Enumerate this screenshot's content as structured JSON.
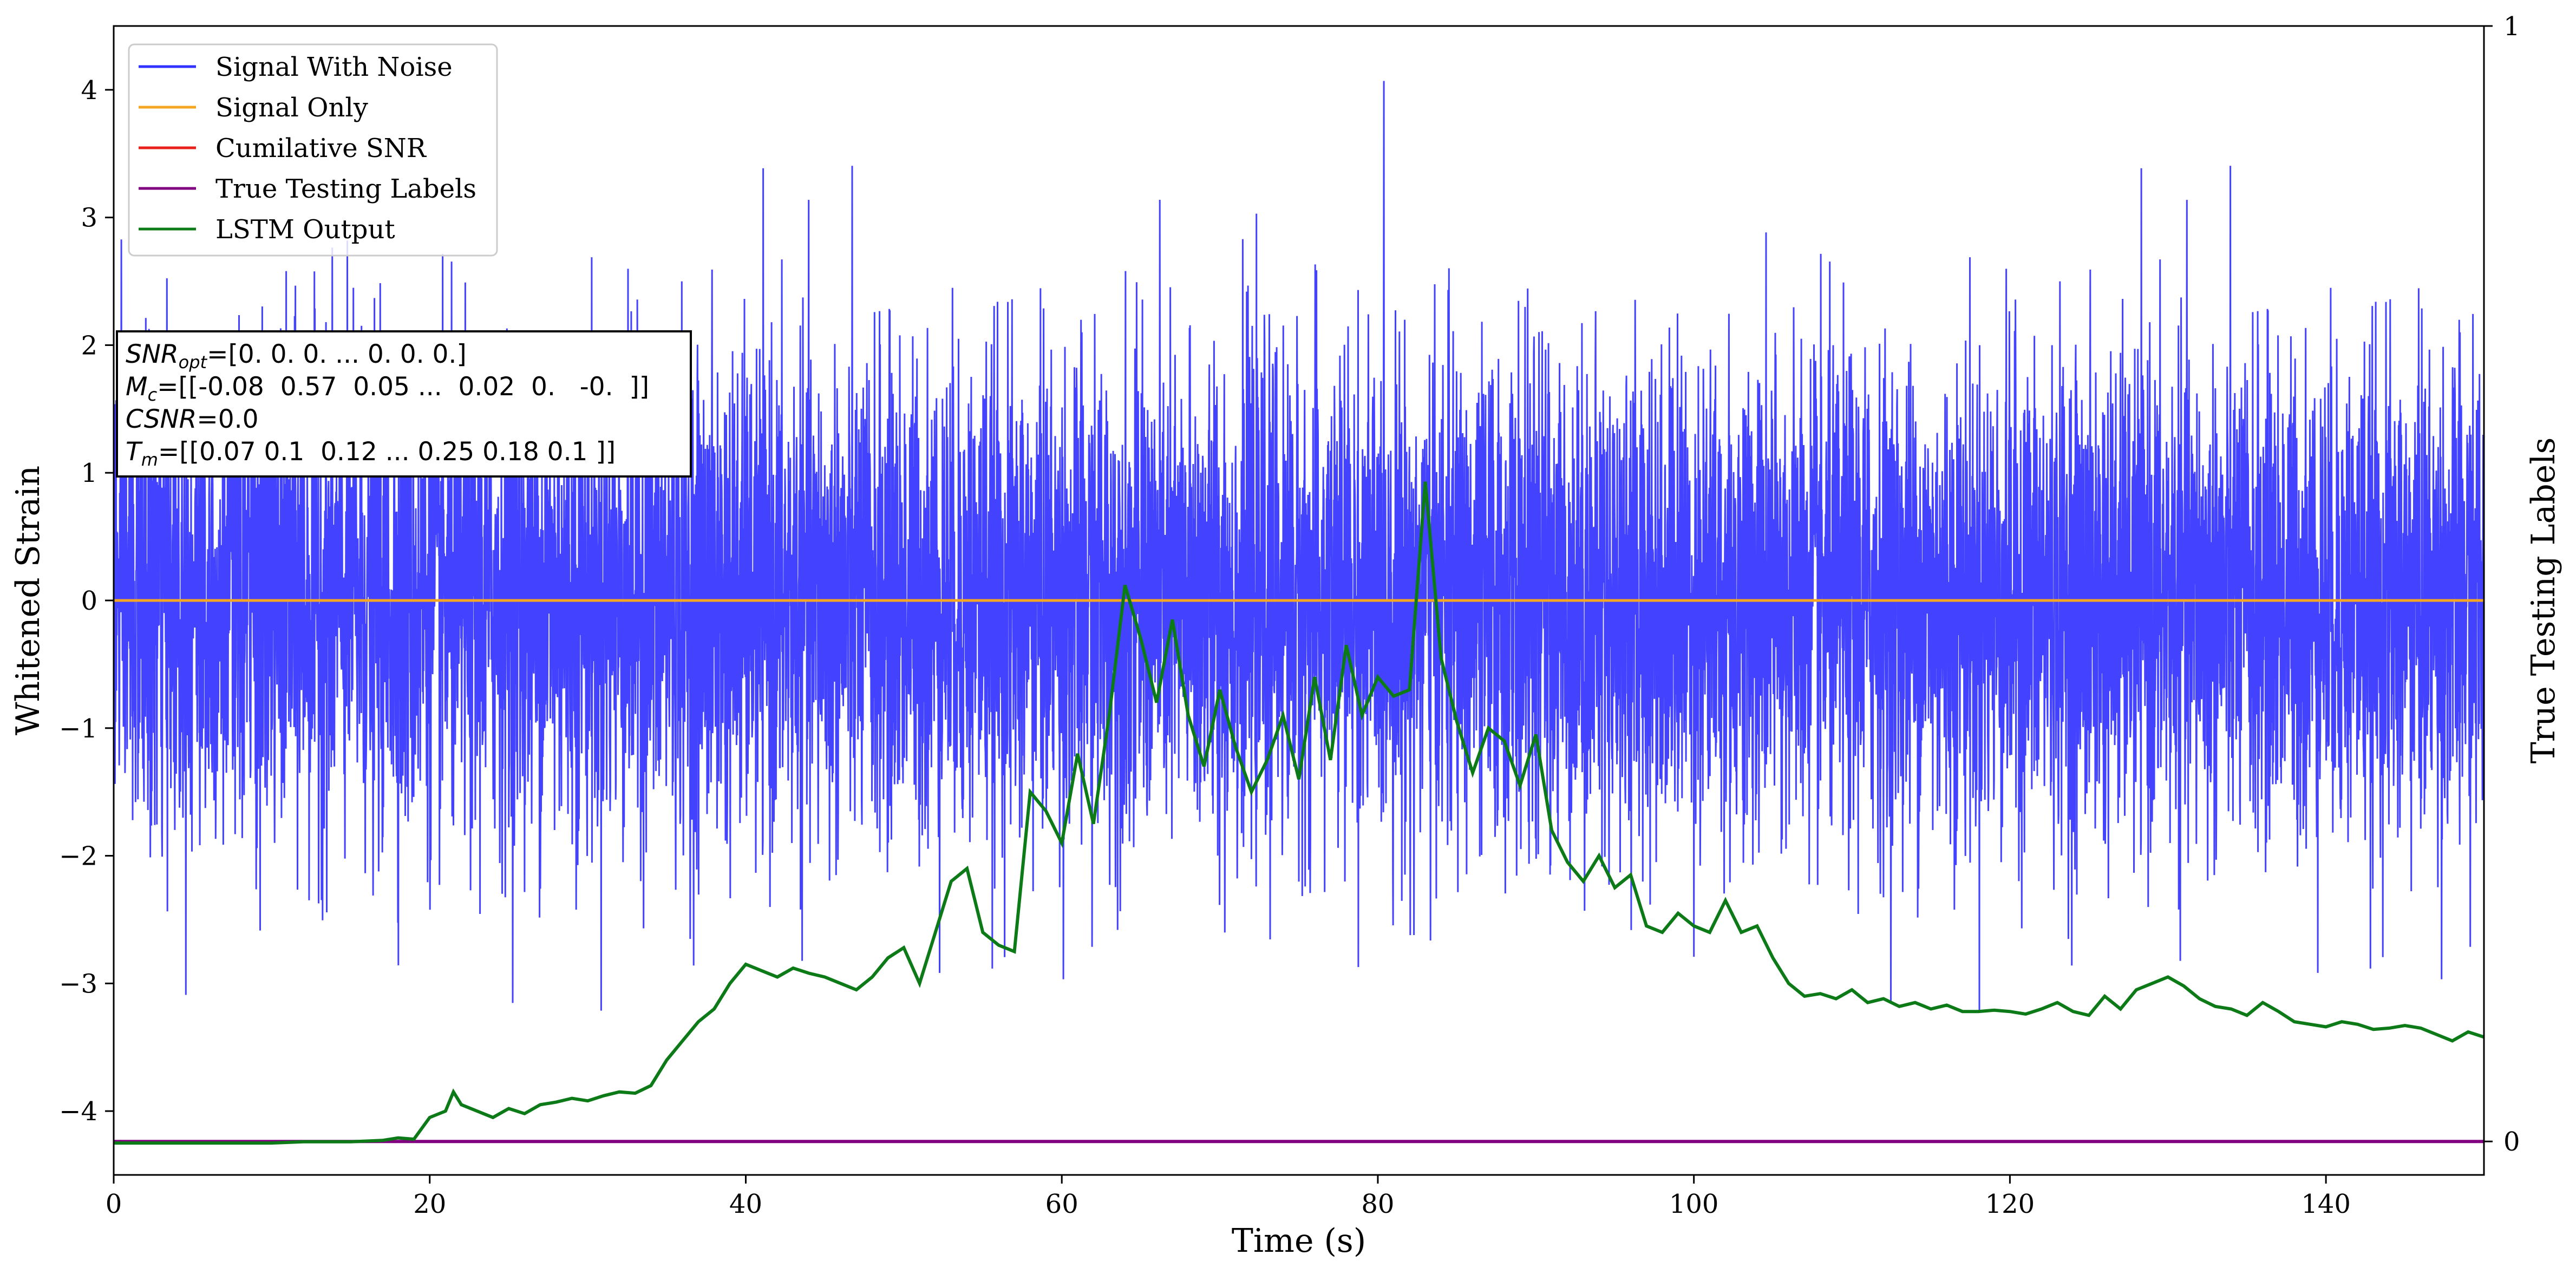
{
  "chart_data": {
    "type": "line",
    "xlabel": "Time (s)",
    "ylabel": "Whitened Strain",
    "y2label": "True Testing Labels",
    "xlim": [
      0,
      150
    ],
    "ylim": [
      -4.5,
      4.5
    ],
    "y2lim": [
      -0.03,
      1
    ],
    "xticks": [
      0,
      20,
      40,
      60,
      80,
      100,
      120,
      140
    ],
    "yticks": [
      -4,
      -3,
      -2,
      -1,
      0,
      1,
      2,
      3,
      4
    ],
    "y2ticks": [
      0,
      1
    ],
    "legend_position": "top-left",
    "colors": {
      "signal_with_noise": "#3333ff",
      "signal_only": "#f5a623",
      "cumulative_snr": "#e8201a",
      "true_labels": "#800080",
      "lstm": "#0c7a17"
    },
    "annotation": {
      "lines": [
        {
          "math": "SNR",
          "sub": "opt",
          "rest": "=[0. 0. 0. ... 0. 0. 0.]"
        },
        {
          "math": "M",
          "sub": "c",
          "rest": "=[[-0.08  0.57  0.05 ...  0.02  0.   -0.  ]]"
        },
        {
          "math": "CSNR",
          "sub": "",
          "rest": "=0.0"
        },
        {
          "math": "T",
          "sub": "m",
          "rest": "=[[0.07 0.1  0.12 ... 0.25 0.18 0.1 ]]"
        }
      ]
    },
    "series": [
      {
        "name": "Signal With Noise",
        "kind": "noise",
        "sigma": 0.95,
        "max": 4.18,
        "min": -3.85
      },
      {
        "name": "Signal Only",
        "x": [
          0,
          150
        ],
        "values": [
          0,
          0
        ]
      },
      {
        "name": "Cumilative SNR",
        "x": [
          0,
          150
        ],
        "values": [
          0,
          0
        ]
      },
      {
        "name": "True Testing Labels",
        "axis": "right",
        "x": [
          0,
          150
        ],
        "values": [
          0,
          0
        ]
      },
      {
        "name": "LSTM Output",
        "x": [
          0,
          5,
          10,
          12,
          15,
          17,
          18,
          19,
          20,
          21,
          21.5,
          22,
          23,
          24,
          25,
          26,
          27,
          28,
          29,
          30,
          31,
          32,
          33,
          34,
          35,
          36,
          37,
          38,
          39,
          40,
          41,
          42,
          43,
          44,
          45,
          46,
          47,
          48,
          49,
          50,
          51,
          52,
          53,
          54,
          55,
          56,
          57,
          58,
          59,
          60,
          61,
          62,
          63,
          64,
          65,
          66,
          67,
          68,
          69,
          70,
          71,
          72,
          73,
          74,
          75,
          76,
          77,
          78,
          79,
          80,
          81,
          82,
          83,
          84,
          85,
          86,
          87,
          88,
          89,
          90,
          91,
          92,
          93,
          94,
          95,
          96,
          97,
          98,
          99,
          100,
          101,
          102,
          103,
          104,
          105,
          106,
          107,
          108,
          109,
          110,
          111,
          112,
          113,
          114,
          115,
          116,
          117,
          118,
          119,
          120,
          121,
          122,
          123,
          124,
          125,
          126,
          127,
          128,
          129,
          130,
          131,
          132,
          133,
          134,
          135,
          136,
          137,
          138,
          139,
          140,
          141,
          142,
          143,
          144,
          145,
          146,
          147,
          148,
          149,
          150
        ],
        "values": [
          -4.25,
          -4.25,
          -4.25,
          -4.24,
          -4.24,
          -4.23,
          -4.21,
          -4.22,
          -4.05,
          -4.0,
          -3.85,
          -3.95,
          -4.0,
          -4.05,
          -3.98,
          -4.02,
          -3.95,
          -3.93,
          -3.9,
          -3.92,
          -3.88,
          -3.85,
          -3.86,
          -3.8,
          -3.6,
          -3.45,
          -3.3,
          -3.2,
          -3.0,
          -2.85,
          -2.9,
          -2.95,
          -2.88,
          -2.92,
          -2.95,
          -3.0,
          -3.05,
          -2.95,
          -2.8,
          -2.72,
          -3.0,
          -2.6,
          -2.2,
          -2.1,
          -2.6,
          -2.7,
          -2.75,
          -1.5,
          -1.65,
          -1.9,
          -1.2,
          -1.75,
          -0.9,
          0.12,
          -0.3,
          -0.8,
          -0.15,
          -0.9,
          -1.3,
          -0.7,
          -1.15,
          -1.5,
          -1.25,
          -0.9,
          -1.4,
          -0.6,
          -1.25,
          -0.35,
          -0.9,
          -0.6,
          -0.75,
          -0.7,
          0.93,
          -0.45,
          -0.95,
          -1.35,
          -1.0,
          -1.1,
          -1.45,
          -1.05,
          -1.8,
          -2.05,
          -2.2,
          -2.0,
          -2.25,
          -2.15,
          -2.55,
          -2.6,
          -2.45,
          -2.55,
          -2.6,
          -2.35,
          -2.6,
          -2.55,
          -2.8,
          -3.0,
          -3.1,
          -3.08,
          -3.12,
          -3.05,
          -3.15,
          -3.12,
          -3.18,
          -3.15,
          -3.2,
          -3.17,
          -3.22,
          -3.22,
          -3.21,
          -3.22,
          -3.24,
          -3.2,
          -3.15,
          -3.22,
          -3.25,
          -3.1,
          -3.2,
          -3.05,
          -3.0,
          -2.95,
          -3.02,
          -3.12,
          -3.18,
          -3.2,
          -3.25,
          -3.15,
          -3.22,
          -3.3,
          -3.32,
          -3.34,
          -3.3,
          -3.32,
          -3.36,
          -3.35,
          -3.33,
          -3.35,
          -3.4,
          -3.45,
          -3.38,
          -3.42
        ]
      }
    ]
  }
}
